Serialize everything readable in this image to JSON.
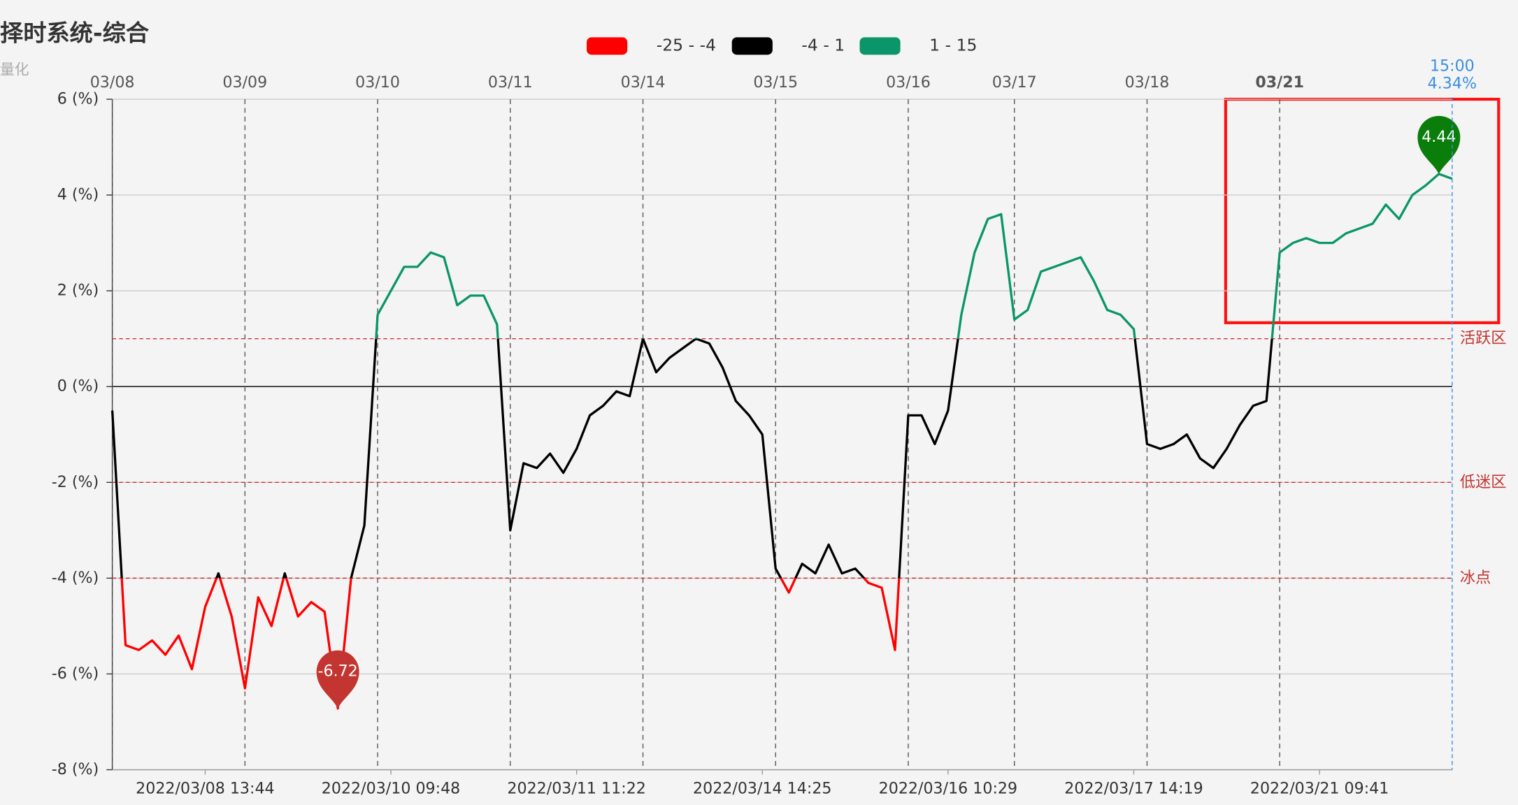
{
  "chart_data": {
    "type": "line",
    "title": "择时系统-综合",
    "subtitle": "量化",
    "pieces": [
      {
        "min": -25,
        "max": -4,
        "label": "-25 - -4",
        "color": "#ff0000"
      },
      {
        "min": -4,
        "max": 1,
        "label": "-4 - 1",
        "color": "#000000"
      },
      {
        "min": 1,
        "max": 15,
        "label": "1 - 15",
        "color": "#0a9669"
      }
    ],
    "categories": [
      null,
      null,
      null,
      null,
      null,
      null,
      null,
      "2022/03/08 13:44",
      null,
      null,
      null,
      null,
      null,
      null,
      null,
      null,
      null,
      null,
      null,
      null,
      null,
      "2022/03/10 09:48",
      null,
      null,
      null,
      null,
      null,
      null,
      null,
      null,
      null,
      null,
      null,
      null,
      null,
      "2022/03/11 11:22",
      null,
      null,
      null,
      null,
      null,
      null,
      null,
      null,
      null,
      null,
      null,
      null,
      null,
      "2022/03/14 14:25",
      null,
      null,
      null,
      null,
      null,
      null,
      null,
      null,
      null,
      null,
      null,
      null,
      null,
      "2022/03/16 10:29",
      null,
      null,
      null,
      null,
      null,
      null,
      null,
      null,
      null,
      null,
      null,
      null,
      null,
      "2022/03/17 14:19",
      null,
      null,
      null,
      null,
      null,
      null,
      null,
      null,
      null,
      null,
      null,
      null,
      null,
      "2022/03/21 09:41",
      null,
      null,
      null,
      null,
      null,
      null,
      null,
      null,
      null,
      null
    ],
    "values": [
      -0.5,
      -5.4,
      -5.5,
      -5.3,
      -5.6,
      -5.2,
      -5.9,
      -4.6,
      -3.9,
      -4.8,
      -6.3,
      -4.4,
      -5.0,
      -3.9,
      -4.8,
      -4.5,
      -4.7,
      -6.72,
      -4.0,
      -2.9,
      1.5,
      2.0,
      2.5,
      2.5,
      2.8,
      2.7,
      1.7,
      1.9,
      1.9,
      1.3,
      -3.0,
      -1.6,
      -1.7,
      -1.4,
      -1.8,
      -1.3,
      -0.6,
      -0.4,
      -0.1,
      -0.2,
      1.0,
      0.3,
      0.6,
      0.8,
      1.0,
      0.9,
      0.4,
      -0.3,
      -0.6,
      -1.0,
      -3.8,
      -4.3,
      -3.7,
      -3.9,
      -3.3,
      -3.9,
      -3.8,
      -4.1,
      -4.2,
      -5.5,
      -0.6,
      -0.6,
      -1.2,
      -0.5,
      1.5,
      2.8,
      3.5,
      3.6,
      1.4,
      1.6,
      2.4,
      2.5,
      2.6,
      2.7,
      2.2,
      1.6,
      1.5,
      1.2,
      -1.2,
      -1.3,
      -1.2,
      -1.0,
      -1.5,
      -1.7,
      -1.3,
      -0.8,
      -0.4,
      -0.3,
      2.8,
      3.0,
      3.1,
      3.0,
      3.0,
      3.2,
      3.3,
      3.4,
      3.8,
      3.5,
      4.0,
      4.2,
      4.44,
      4.34
    ],
    "xlim": [
      0,
      101
    ],
    "xticks": [
      {
        "value": 0,
        "label": "03/08"
      },
      {
        "value": 10,
        "label": "03/09"
      },
      {
        "value": 20,
        "label": "03/10"
      },
      {
        "value": 30,
        "label": "03/11"
      },
      {
        "value": 40,
        "label": "03/14"
      },
      {
        "value": 50,
        "label": "03/15"
      },
      {
        "value": 60,
        "label": "03/16"
      },
      {
        "value": 68,
        "label": "03/17"
      },
      {
        "value": 78,
        "label": "03/18"
      },
      {
        "value": 88,
        "label": "03/21"
      }
    ],
    "ylim": [
      -8,
      6
    ],
    "yticks": [
      {
        "value": -8,
        "label": "-8 (%)"
      },
      {
        "value": -6,
        "label": "-6 (%)"
      },
      {
        "value": -4,
        "label": "-4 (%)"
      },
      {
        "value": -2,
        "label": "-2 (%)"
      },
      {
        "value": 0,
        "label": "0 (%)"
      },
      {
        "value": 2,
        "label": "2 (%)"
      },
      {
        "value": 4,
        "label": "4 (%)"
      },
      {
        "value": 6,
        "label": "6 (%)"
      }
    ],
    "grid": true,
    "mark_lines": [
      {
        "value": 1,
        "label": "活跃区"
      },
      {
        "value": -2,
        "label": "低迷区"
      },
      {
        "value": -4,
        "label": "冰点"
      }
    ],
    "mark_points": [
      {
        "index": 17,
        "value": -6.72,
        "color": "#c23531"
      },
      {
        "index": 100,
        "value": 4.44,
        "color": "#0a7d0a"
      }
    ],
    "end_marker": {
      "time": "15:00",
      "value": 4.34,
      "value_label": "4.34%"
    }
  }
}
